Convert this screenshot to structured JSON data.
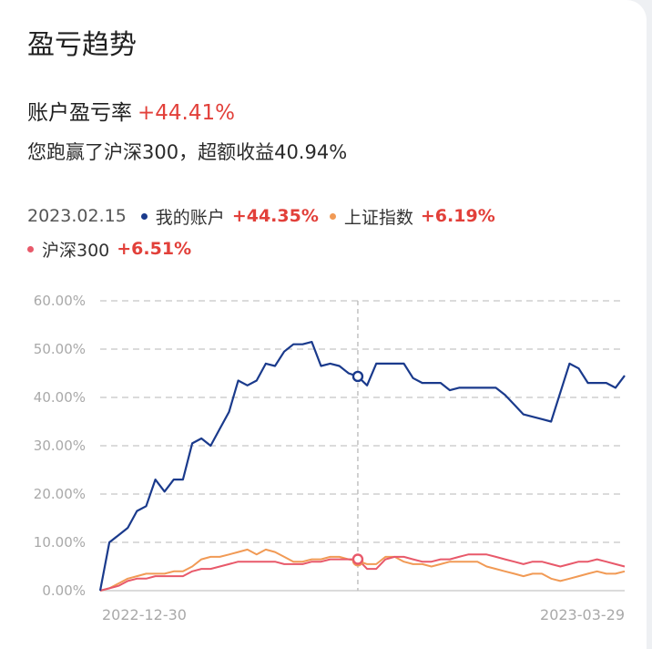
{
  "title": "盈亏趋势",
  "profit_rate": {
    "label": "账户盈亏率",
    "value": "+44.41%"
  },
  "beat_text": "您跑赢了沪深300，超额收益40.94%",
  "legend": {
    "date": "2023.02.15",
    "items": [
      {
        "name": "我的账户",
        "value": "+44.35%",
        "color": "#1a3a8c"
      },
      {
        "name": "上证指数",
        "value": "+6.19%",
        "color": "#f19a55"
      },
      {
        "name": "沪深300",
        "value": "+6.51%",
        "color": "#e8596a"
      }
    ]
  },
  "chart_data": {
    "type": "line",
    "ylim": [
      0,
      60
    ],
    "yticks": [
      "60.00%",
      "50.00%",
      "40.00%",
      "30.00%",
      "20.00%",
      "10.00%",
      "0.00%"
    ],
    "xtick_labels": [
      "2022-12-30",
      "2023-03-29"
    ],
    "marker_index": 28,
    "grid": true,
    "series": [
      {
        "name": "我的账户",
        "color": "#1a3a8c",
        "values": [
          0,
          10,
          11.5,
          13,
          16.5,
          17.5,
          23,
          20.5,
          23,
          23,
          30.5,
          31.5,
          30,
          33.5,
          37,
          43.5,
          42.5,
          43.5,
          47,
          46.5,
          49.5,
          51,
          51,
          51.5,
          46.5,
          47,
          46.5,
          45,
          44.35,
          42.5,
          47,
          47,
          47,
          47,
          44,
          43,
          43,
          43,
          41.5,
          42,
          42,
          42,
          42,
          42,
          40.5,
          38.5,
          36.5,
          36,
          35.5,
          35,
          41,
          47,
          46,
          43,
          43,
          43,
          42,
          44.5
        ]
      },
      {
        "name": "上证指数",
        "color": "#f19a55",
        "values": [
          0,
          0.5,
          1.5,
          2.5,
          3,
          3.5,
          3.5,
          3.5,
          4,
          4,
          5,
          6.5,
          7,
          7,
          7.5,
          8,
          8.5,
          7.5,
          8.5,
          8,
          7,
          6,
          6,
          6.5,
          6.5,
          7,
          7,
          6.5,
          6.19,
          5.5,
          5.5,
          7,
          7,
          6,
          5.5,
          5.5,
          5,
          5.5,
          6,
          6,
          6,
          6,
          5,
          4.5,
          4,
          3.5,
          3,
          3.5,
          3.5,
          2.5,
          2,
          2.5,
          3,
          3.5,
          4,
          3.5,
          3.5,
          4
        ]
      },
      {
        "name": "沪深300",
        "color": "#e8596a",
        "values": [
          0,
          0.5,
          1,
          2,
          2.5,
          2.5,
          3,
          3,
          3,
          3,
          4,
          4.5,
          4.5,
          5,
          5.5,
          6,
          6,
          6,
          6,
          6,
          5.5,
          5.5,
          5.5,
          6,
          6,
          6.5,
          6.5,
          6.5,
          6.51,
          4.5,
          4.5,
          6.5,
          7,
          7,
          6.5,
          6,
          6,
          6.5,
          6.5,
          7,
          7.5,
          7.5,
          7.5,
          7,
          6.5,
          6,
          5.5,
          6,
          6,
          5.5,
          5,
          5.5,
          6,
          6,
          6.5,
          6,
          5.5,
          5
        ]
      }
    ]
  }
}
